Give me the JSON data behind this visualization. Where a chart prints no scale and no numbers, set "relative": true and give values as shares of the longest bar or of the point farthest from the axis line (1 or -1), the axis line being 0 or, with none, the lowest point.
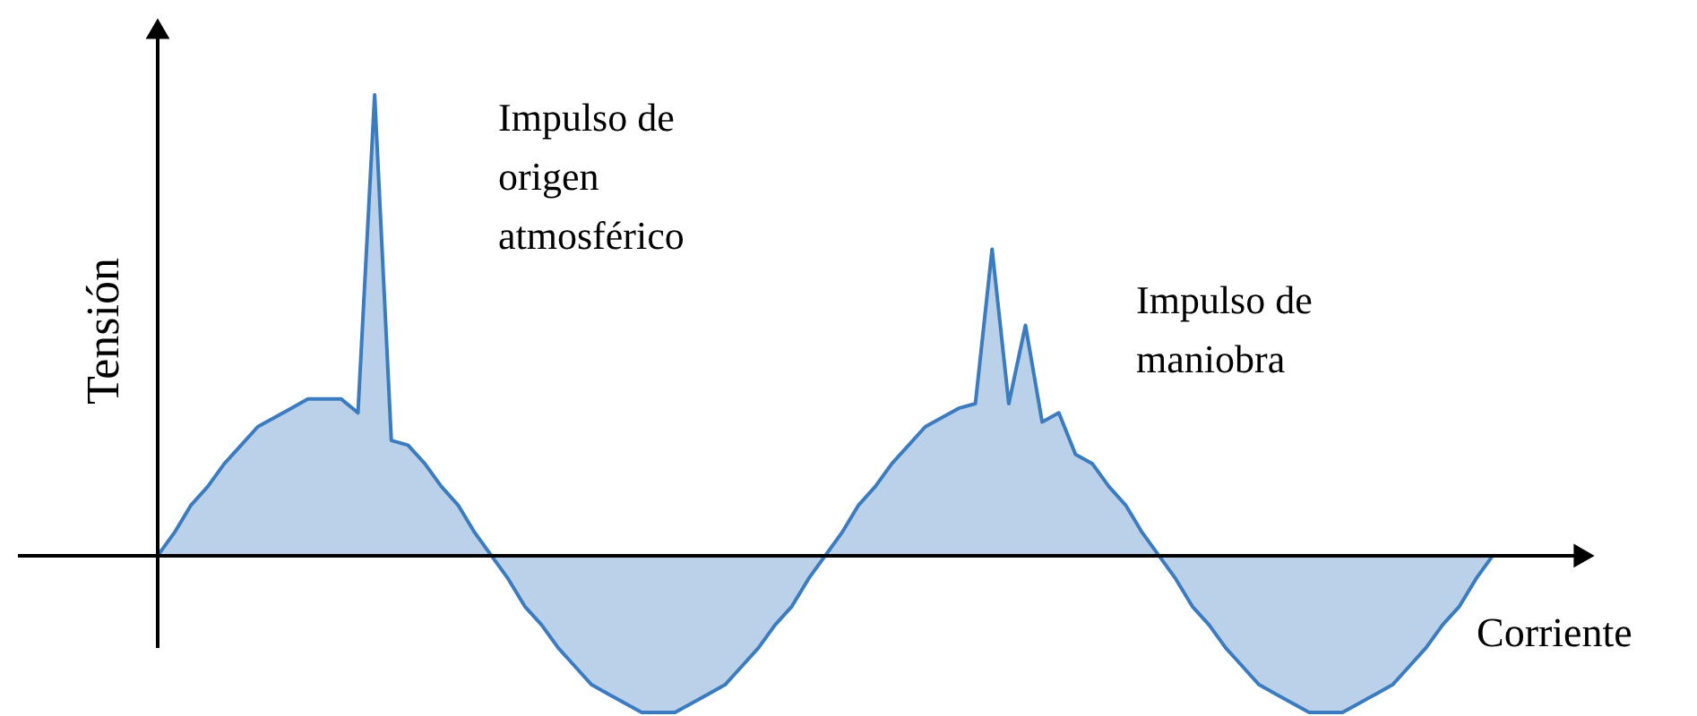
{
  "chart_data": {
    "type": "area",
    "relative": true,
    "xlabel": "Corriente",
    "ylabel": "Tensión",
    "annotations": [
      "Impulso de\norigen\natmosférico",
      "Impulso de\nmaniobra"
    ],
    "categories": [
      null,
      null,
      null,
      null,
      null,
      null,
      null,
      null,
      null,
      null,
      null,
      null,
      null,
      null,
      null,
      null,
      null,
      null,
      null,
      null,
      null,
      null,
      null,
      null,
      null,
      null,
      null,
      null,
      null,
      null,
      null,
      null,
      null,
      null,
      null,
      null,
      null,
      null,
      null,
      null,
      null,
      null,
      null,
      null,
      null,
      null,
      null,
      null,
      null,
      null,
      null,
      null,
      null,
      null,
      null,
      null,
      null,
      null,
      null,
      null,
      null,
      null,
      null,
      null,
      null,
      null,
      null,
      null,
      null,
      null,
      null,
      null,
      null,
      null,
      null,
      null,
      null,
      null,
      null,
      null,
      null
    ],
    "series": [
      {
        "color": "#3b7cc1",
        "values": [
          0,
          0.05,
          0.11,
          0.15,
          0.2,
          0.24,
          0.28,
          0.3,
          0.32,
          0.34,
          0.34,
          0.34,
          0.31,
          1,
          0.25,
          0.24,
          0.2,
          0.15,
          0.11,
          0.05,
          0,
          -0.05,
          -0.11,
          -0.15,
          -0.2,
          -0.24,
          -0.28,
          -0.3,
          -0.32,
          -0.34,
          -0.34,
          -0.34,
          -0.32,
          -0.3,
          -0.28,
          -0.24,
          -0.2,
          -0.15,
          -0.11,
          -0.05,
          0,
          0.05,
          0.11,
          0.15,
          0.2,
          0.24,
          0.28,
          0.3,
          0.32,
          0.33,
          0.665,
          0.33,
          0.5,
          0.29,
          0.31,
          0.22,
          0.2,
          0.15,
          0.11,
          0.05,
          0,
          -0.05,
          -0.11,
          -0.15,
          -0.2,
          -0.24,
          -0.28,
          -0.3,
          -0.32,
          -0.34,
          -0.34,
          -0.34,
          -0.32,
          -0.3,
          -0.28,
          -0.24,
          -0.2,
          -0.15,
          -0.11,
          -0.05,
          0
        ]
      }
    ]
  }
}
